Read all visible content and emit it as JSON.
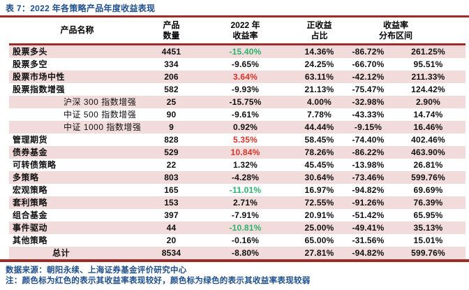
{
  "title": "表 7：2022 年各策略产品年度收益表现",
  "colors": {
    "title_navy": "#1e4f8c",
    "rule_red": "#9e2b28",
    "row_pink": "#f2dcdb",
    "value_red": "#d93228",
    "value_green": "#2db26d"
  },
  "table": {
    "headers": {
      "name": "产品名称",
      "count": {
        "l1": "产品",
        "l2": "数量"
      },
      "ret": {
        "l1": "2022 年",
        "l2": "收益率"
      },
      "ratio": {
        "l1": "正收益",
        "l2": "占比"
      },
      "dist": {
        "l1": "收益率",
        "l2": "分布区间"
      }
    },
    "rows": [
      {
        "name": "股票多头",
        "count": "4451",
        "ret": "-15.40%",
        "ret_color": "green",
        "ratio": "14.36%",
        "low": "-86.72%",
        "high": "261.25%"
      },
      {
        "name": "股票多空",
        "count": "334",
        "ret": "-9.65%",
        "ret_color": "",
        "ratio": "24.25%",
        "low": "-66.70%",
        "high": "95.51%"
      },
      {
        "name": "股票市场中性",
        "count": "206",
        "ret": "3.64%",
        "ret_color": "red",
        "ratio": "63.11%",
        "low": "-42.12%",
        "high": "211.33%"
      },
      {
        "name": "股票指数增强",
        "count": "582",
        "ret": "-9.93%",
        "ret_color": "",
        "ratio": "21.13%",
        "low": "-75.47%",
        "high": "124.42%"
      },
      {
        "name": "沪深 300 指数增强",
        "indent": "sub",
        "count": "25",
        "ret": "-15.75%",
        "ret_color": "",
        "ratio": "4.00%",
        "low": "-32.98%",
        "high": "2.90%"
      },
      {
        "name": "中证 500 指数增强",
        "indent": "sub",
        "count": "90",
        "ret": "-9.61%",
        "ret_color": "",
        "ratio": "7.78%",
        "low": "-43.33%",
        "high": "14.74%"
      },
      {
        "name": "中证 1000 指数增强",
        "indent": "sub",
        "count": "9",
        "ret": "0.92%",
        "ret_color": "",
        "ratio": "44.44%",
        "low": "-9.15%",
        "high": "16.46%"
      },
      {
        "name": "管理期货",
        "count": "828",
        "ret": "5.35%",
        "ret_color": "red",
        "ratio": "58.45%",
        "low": "-74.40%",
        "high": "402.46%"
      },
      {
        "name": "债券基金",
        "count": "529",
        "ret": "10.84%",
        "ret_color": "red",
        "ratio": "78.26%",
        "low": "-86.22%",
        "high": "463.90%"
      },
      {
        "name": "可转债策略",
        "count": "22",
        "ret": "1.32%",
        "ret_color": "",
        "ratio": "45.45%",
        "low": "-13.98%",
        "high": "26.81%"
      },
      {
        "name": "多策略",
        "count": "803",
        "ret": "-4.28%",
        "ret_color": "",
        "ratio": "30.64%",
        "low": "-73.46%",
        "high": "599.76%"
      },
      {
        "name": "宏观策略",
        "count": "165",
        "ret": "-11.01%",
        "ret_color": "green",
        "ratio": "16.97%",
        "low": "-94.82%",
        "high": "69.69%"
      },
      {
        "name": "套利策略",
        "count": "153",
        "ret": "2.71%",
        "ret_color": "",
        "ratio": "72.55%",
        "low": "-91.26%",
        "high": "76.39%"
      },
      {
        "name": "组合基金",
        "count": "397",
        "ret": "-7.91%",
        "ret_color": "",
        "ratio": "20.91%",
        "low": "-51.42%",
        "high": "65.95%"
      },
      {
        "name": "事件驱动",
        "count": "44",
        "ret": "-10.81%",
        "ret_color": "green",
        "ratio": "25.00%",
        "low": "-49.41%",
        "high": "35.13%"
      },
      {
        "name": "其他策略",
        "count": "20",
        "ret": "-0.16%",
        "ret_color": "",
        "ratio": "65.00%",
        "low": "-31.56%",
        "high": "15.01%"
      },
      {
        "name": "总计",
        "indent": "total",
        "count": "8534",
        "ret": "-8.80%",
        "ret_color": "",
        "ratio": "27.81%",
        "low": "-94.82%",
        "high": "599.76%"
      }
    ]
  },
  "footer": {
    "source": "数据来源：朝阳永续、上海证券基金评价研究中心",
    "note": "注：颜色标为红色的表示其收益率表现较好，颜色标为绿色的表示其收益率表现较弱"
  }
}
